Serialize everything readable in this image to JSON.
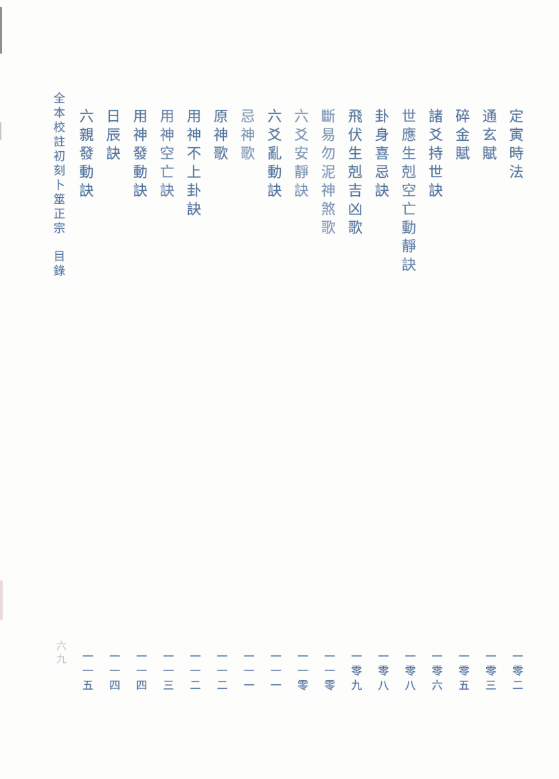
{
  "page": {
    "background_color": "#fdfdfc",
    "ink_color": "#54749e",
    "folio_label": "六九",
    "folio_color": "#bdc2c7"
  },
  "book": {
    "title": "全本校註初刻卜筮正宗",
    "section": "目錄"
  },
  "toc": {
    "entries": [
      {
        "title": "定寅時法",
        "page": "一零二"
      },
      {
        "title": "通玄賦",
        "page": "一零三"
      },
      {
        "title": "碎金賦",
        "page": "一零五"
      },
      {
        "title": "諸爻持世訣",
        "page": "一零六"
      },
      {
        "title": "世應生剋空亡動靜訣",
        "page": "一零八"
      },
      {
        "title": "卦身喜忌訣",
        "page": "一零八"
      },
      {
        "title": "飛伏生剋吉凶歌",
        "page": "一零九"
      },
      {
        "title": "斷易勿泥神煞歌",
        "page": "一一零"
      },
      {
        "title": "六爻安靜訣",
        "page": "一一零"
      },
      {
        "title": "六爻亂動訣",
        "page": "一一一"
      },
      {
        "title": "忌神歌",
        "page": "一一一"
      },
      {
        "title": "原神歌",
        "page": "一一二"
      },
      {
        "title": "用神不上卦訣",
        "page": "一一二"
      },
      {
        "title": "用神空亡訣",
        "page": "一一三"
      },
      {
        "title": "用神發動訣",
        "page": "一一四"
      },
      {
        "title": "日辰訣",
        "page": "一一四"
      },
      {
        "title": "六親發動訣",
        "page": "一一五"
      }
    ]
  }
}
